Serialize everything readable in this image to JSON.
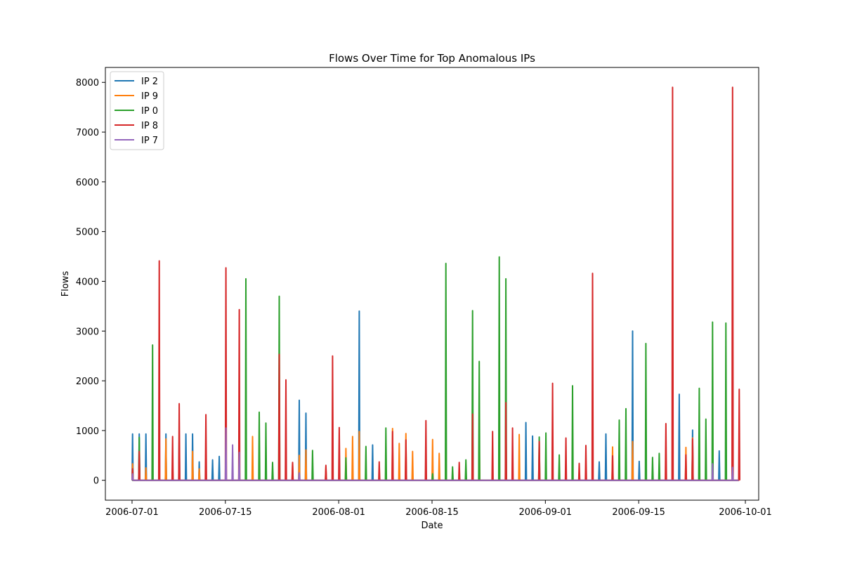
{
  "chart_data": {
    "type": "line",
    "title": "Flows Over Time for Top Anomalous IPs",
    "xlabel": "Date",
    "ylabel": "Flows",
    "xlim": [
      "2006-06-27",
      "2006-10-03"
    ],
    "ylim": [
      -400,
      8300
    ],
    "x_ticks": [
      "2006-07-01",
      "2006-07-15",
      "2006-08-01",
      "2006-08-15",
      "2006-09-01",
      "2006-09-15",
      "2006-10-01"
    ],
    "y_ticks": [
      0,
      1000,
      2000,
      3000,
      4000,
      5000,
      6000,
      7000,
      8000
    ],
    "grid": false,
    "legend": "upper-left",
    "colors": {
      "IP 2": "#1f77b4",
      "IP 9": "#ff7f0e",
      "IP 0": "#2ca02c",
      "IP 8": "#d62728",
      "IP 7": "#9467bd"
    },
    "series": [
      {
        "name": "IP 2",
        "points": [
          [
            "2006-07-01",
            930
          ],
          [
            "2006-07-02",
            930
          ],
          [
            "2006-07-03",
            930
          ],
          [
            "2006-07-06",
            930
          ],
          [
            "2006-07-08",
            930
          ],
          [
            "2006-07-09",
            930
          ],
          [
            "2006-07-10",
            930
          ],
          [
            "2006-07-11",
            370
          ],
          [
            "2006-07-13",
            410
          ],
          [
            "2006-07-14",
            480
          ],
          [
            "2006-07-26",
            1610
          ],
          [
            "2006-07-27",
            1350
          ],
          [
            "2006-08-04",
            3400
          ],
          [
            "2006-08-06",
            710
          ],
          [
            "2006-08-29",
            1160
          ],
          [
            "2006-08-30",
            890
          ],
          [
            "2006-09-09",
            370
          ],
          [
            "2006-09-10",
            930
          ],
          [
            "2006-09-14",
            3000
          ],
          [
            "2006-09-15",
            380
          ],
          [
            "2006-09-21",
            1730
          ],
          [
            "2006-09-23",
            1010
          ],
          [
            "2006-09-27",
            590
          ]
        ]
      },
      {
        "name": "IP 9",
        "points": [
          [
            "2006-07-01",
            330
          ],
          [
            "2006-07-03",
            250
          ],
          [
            "2006-07-06",
            830
          ],
          [
            "2006-07-07",
            330
          ],
          [
            "2006-07-08",
            240
          ],
          [
            "2006-07-10",
            580
          ],
          [
            "2006-07-11",
            230
          ],
          [
            "2006-07-19",
            880
          ],
          [
            "2006-07-25",
            350
          ],
          [
            "2006-07-26",
            500
          ],
          [
            "2006-07-27",
            610
          ],
          [
            "2006-07-30",
            260
          ],
          [
            "2006-08-02",
            640
          ],
          [
            "2006-08-03",
            880
          ],
          [
            "2006-08-04",
            980
          ],
          [
            "2006-08-09",
            1040
          ],
          [
            "2006-08-10",
            740
          ],
          [
            "2006-08-11",
            940
          ],
          [
            "2006-08-12",
            580
          ],
          [
            "2006-08-15",
            820
          ],
          [
            "2006-08-16",
            540
          ],
          [
            "2006-08-22",
            990
          ],
          [
            "2006-08-28",
            920
          ],
          [
            "2006-09-11",
            670
          ],
          [
            "2006-09-14",
            780
          ],
          [
            "2006-09-22",
            660
          ],
          [
            "2006-09-23",
            850
          ]
        ]
      },
      {
        "name": "IP 0",
        "points": [
          [
            "2006-07-02",
            860
          ],
          [
            "2006-07-04",
            2720
          ],
          [
            "2006-07-18",
            4050
          ],
          [
            "2006-07-20",
            1370
          ],
          [
            "2006-07-21",
            1150
          ],
          [
            "2006-07-22",
            360
          ],
          [
            "2006-07-23",
            3700
          ],
          [
            "2006-07-28",
            600
          ],
          [
            "2006-08-02",
            450
          ],
          [
            "2006-08-05",
            680
          ],
          [
            "2006-08-08",
            1050
          ],
          [
            "2006-08-15",
            130
          ],
          [
            "2006-08-17",
            4360
          ],
          [
            "2006-08-18",
            270
          ],
          [
            "2006-08-20",
            410
          ],
          [
            "2006-08-21",
            3410
          ],
          [
            "2006-08-22",
            2390
          ],
          [
            "2006-08-25",
            4490
          ],
          [
            "2006-08-26",
            4050
          ],
          [
            "2006-08-31",
            870
          ],
          [
            "2006-09-01",
            950
          ],
          [
            "2006-09-03",
            510
          ],
          [
            "2006-09-05",
            1900
          ],
          [
            "2006-09-12",
            1210
          ],
          [
            "2006-09-13",
            1440
          ],
          [
            "2006-09-16",
            2750
          ],
          [
            "2006-09-17",
            460
          ],
          [
            "2006-09-18",
            540
          ],
          [
            "2006-09-24",
            1850
          ],
          [
            "2006-09-25",
            1230
          ],
          [
            "2006-09-26",
            3180
          ],
          [
            "2006-09-28",
            3160
          ]
        ]
      },
      {
        "name": "IP 8",
        "points": [
          [
            "2006-07-01",
            230
          ],
          [
            "2006-07-02",
            580
          ],
          [
            "2006-07-05",
            4410
          ],
          [
            "2006-07-07",
            880
          ],
          [
            "2006-07-08",
            1540
          ],
          [
            "2006-07-12",
            1320
          ],
          [
            "2006-07-15",
            4270
          ],
          [
            "2006-07-17",
            3430
          ],
          [
            "2006-07-23",
            2530
          ],
          [
            "2006-07-24",
            2020
          ],
          [
            "2006-07-25",
            360
          ],
          [
            "2006-07-30",
            300
          ],
          [
            "2006-07-31",
            2500
          ],
          [
            "2006-08-01",
            1060
          ],
          [
            "2006-08-07",
            370
          ],
          [
            "2006-08-09",
            980
          ],
          [
            "2006-08-11",
            810
          ],
          [
            "2006-08-14",
            1200
          ],
          [
            "2006-08-19",
            360
          ],
          [
            "2006-08-21",
            1330
          ],
          [
            "2006-08-24",
            980
          ],
          [
            "2006-08-26",
            1560
          ],
          [
            "2006-08-27",
            1050
          ],
          [
            "2006-08-31",
            780
          ],
          [
            "2006-09-02",
            1950
          ],
          [
            "2006-09-04",
            850
          ],
          [
            "2006-09-06",
            340
          ],
          [
            "2006-09-07",
            700
          ],
          [
            "2006-09-08",
            4160
          ],
          [
            "2006-09-11",
            490
          ],
          [
            "2006-09-19",
            1140
          ],
          [
            "2006-09-20",
            7900
          ],
          [
            "2006-09-22",
            510
          ],
          [
            "2006-09-23",
            830
          ],
          [
            "2006-09-29",
            7900
          ],
          [
            "2006-09-30",
            1830
          ]
        ]
      },
      {
        "name": "IP 7",
        "points": [
          [
            "2006-07-01",
            130
          ],
          [
            "2006-07-15",
            1050
          ],
          [
            "2006-07-16",
            710
          ],
          [
            "2006-07-17",
            560
          ],
          [
            "2006-07-26",
            150
          ],
          [
            "2006-09-26",
            330
          ],
          [
            "2006-09-29",
            260
          ]
        ]
      }
    ]
  }
}
